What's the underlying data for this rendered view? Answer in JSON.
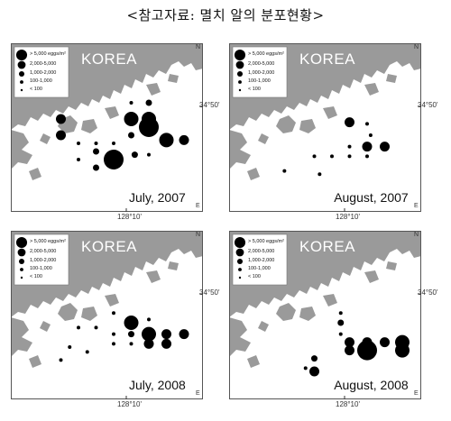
{
  "title": "<참고자료: 멸치 알의 분포현황>",
  "legend": {
    "labels": [
      "> 5,000 eggs/m²",
      "2,000-5,000",
      "1,000-2,000",
      "100-1,000",
      "< 100"
    ]
  },
  "map": {
    "region_label": "KOREA",
    "lat_label": "34°50'",
    "lon_label": "128°10'",
    "north_label": "N",
    "east_label": "E",
    "land_color": "#9a9a9a",
    "sea_color": "#ffffff"
  },
  "panels": [
    {
      "date": "July, 2007",
      "stations": [
        {
          "col": 1,
          "row": 1,
          "cls": 2
        },
        {
          "col": 1,
          "row": 2,
          "cls": 2
        },
        {
          "col": 5,
          "row": 0,
          "cls": 4
        },
        {
          "col": 6,
          "row": 0,
          "cls": 3
        },
        {
          "col": 5,
          "row": 1,
          "cls": 1
        },
        {
          "col": 6,
          "row": 1,
          "cls": 1
        },
        {
          "col": 5,
          "row": 2,
          "cls": 3
        },
        {
          "col": 6,
          "row": 1.5,
          "cls": 0
        },
        {
          "col": 7,
          "row": 2.3,
          "cls": 1
        },
        {
          "col": 8,
          "row": 2.3,
          "cls": 2
        },
        {
          "col": 2,
          "row": 2.5,
          "cls": 4
        },
        {
          "col": 3,
          "row": 2.5,
          "cls": 4
        },
        {
          "col": 4,
          "row": 2.5,
          "cls": 4
        },
        {
          "col": 3,
          "row": 3,
          "cls": 3
        },
        {
          "col": 4,
          "row": 3.5,
          "cls": 0
        },
        {
          "col": 5.2,
          "row": 3.2,
          "cls": 3
        },
        {
          "col": 6,
          "row": 3.2,
          "cls": 4
        },
        {
          "col": 2,
          "row": 3.5,
          "cls": 4
        },
        {
          "col": 3,
          "row": 4,
          "cls": 3
        }
      ]
    },
    {
      "date": "August, 2007",
      "stations": [
        {
          "col": 5,
          "row": 1.2,
          "cls": 2
        },
        {
          "col": 6,
          "row": 1.3,
          "cls": 4
        },
        {
          "col": 6.2,
          "row": 2,
          "cls": 4
        },
        {
          "col": 6,
          "row": 2.7,
          "cls": 2
        },
        {
          "col": 7,
          "row": 2.7,
          "cls": 2
        },
        {
          "col": 5,
          "row": 2.7,
          "cls": 4
        },
        {
          "col": 3,
          "row": 3.3,
          "cls": 4
        },
        {
          "col": 4,
          "row": 3.3,
          "cls": 4
        },
        {
          "col": 5,
          "row": 3.3,
          "cls": 4
        },
        {
          "col": 6,
          "row": 3.3,
          "cls": 4
        },
        {
          "col": 1.3,
          "row": 4.2,
          "cls": 4
        },
        {
          "col": 3.3,
          "row": 4.4,
          "cls": 4
        }
      ]
    },
    {
      "date": "July, 2008",
      "stations": [
        {
          "col": 4,
          "row": 1.4,
          "cls": 4
        },
        {
          "col": 5,
          "row": 2,
          "cls": 1
        },
        {
          "col": 6,
          "row": 1.8,
          "cls": 4
        },
        {
          "col": 2,
          "row": 2.3,
          "cls": 4
        },
        {
          "col": 3,
          "row": 2.3,
          "cls": 4
        },
        {
          "col": 4,
          "row": 2.7,
          "cls": 4
        },
        {
          "col": 5,
          "row": 2.7,
          "cls": 3
        },
        {
          "col": 6,
          "row": 2.7,
          "cls": 1
        },
        {
          "col": 7,
          "row": 2.7,
          "cls": 2
        },
        {
          "col": 8,
          "row": 2.7,
          "cls": 2
        },
        {
          "col": 4,
          "row": 3.3,
          "cls": 4
        },
        {
          "col": 5,
          "row": 3.3,
          "cls": 4
        },
        {
          "col": 6,
          "row": 3.3,
          "cls": 2
        },
        {
          "col": 7,
          "row": 3.3,
          "cls": 2
        },
        {
          "col": 1.5,
          "row": 3.5,
          "cls": 4
        },
        {
          "col": 2.5,
          "row": 3.8,
          "cls": 4
        },
        {
          "col": 1,
          "row": 4.3,
          "cls": 4
        }
      ]
    },
    {
      "date": "August, 2008",
      "stations": [
        {
          "col": 4.5,
          "row": 1.4,
          "cls": 4
        },
        {
          "col": 4.5,
          "row": 2,
          "cls": 3
        },
        {
          "col": 4.5,
          "row": 2.7,
          "cls": 4
        },
        {
          "col": 5,
          "row": 3.2,
          "cls": 2
        },
        {
          "col": 6,
          "row": 3.2,
          "cls": 2
        },
        {
          "col": 7,
          "row": 3.2,
          "cls": 2
        },
        {
          "col": 8,
          "row": 3.2,
          "cls": 1
        },
        {
          "col": 5,
          "row": 3.7,
          "cls": 2
        },
        {
          "col": 6,
          "row": 3.7,
          "cls": 0
        },
        {
          "col": 8,
          "row": 3.7,
          "cls": 1
        },
        {
          "col": 3,
          "row": 4.2,
          "cls": 3
        },
        {
          "col": 2.5,
          "row": 4.8,
          "cls": 4
        },
        {
          "col": 3,
          "row": 5,
          "cls": 2
        }
      ]
    }
  ]
}
